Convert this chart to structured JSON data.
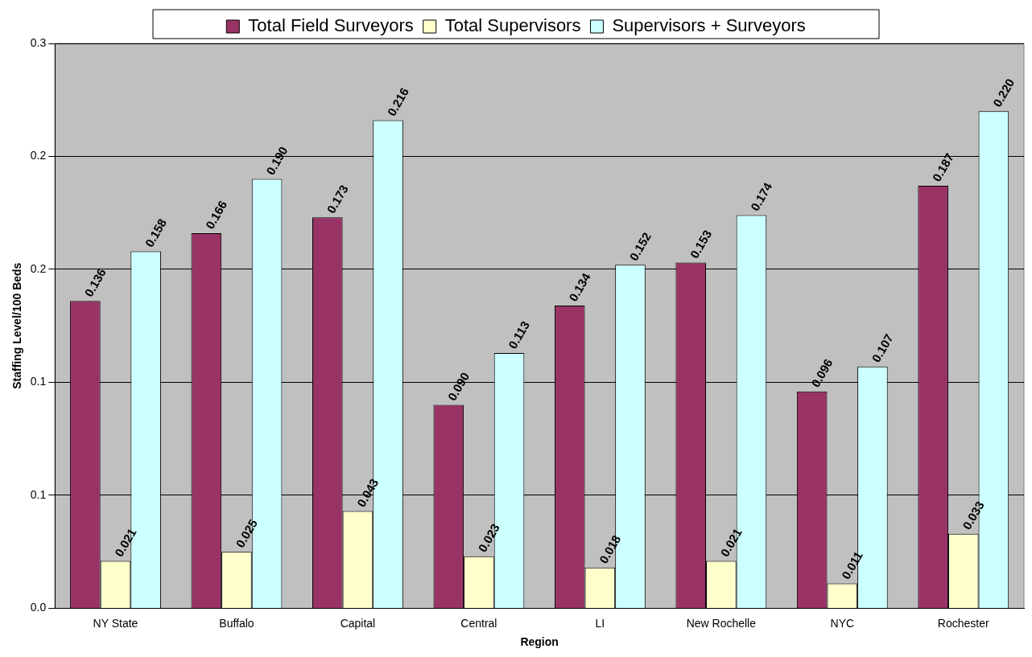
{
  "chart_data": {
    "type": "bar",
    "xlabel": "Region",
    "ylabel": "Staffing Level/100 Beds",
    "categories": [
      "NY State",
      "Buffalo",
      "Capital",
      "Central",
      "LI",
      "New Rochelle",
      "NYC",
      "Rochester"
    ],
    "series": [
      {
        "name": "Total Field Surveyors",
        "color": "#993366",
        "values": [
          0.136,
          0.166,
          0.173,
          0.09,
          0.134,
          0.153,
          0.096,
          0.187
        ],
        "value_labels": [
          "0.136",
          "0.166",
          "0.173",
          "0.090",
          "0.134",
          "0.153",
          "0.096",
          "0.187"
        ]
      },
      {
        "name": "Total Supervisors",
        "color": "#ffffcc",
        "values": [
          0.021,
          0.025,
          0.043,
          0.023,
          0.018,
          0.021,
          0.011,
          0.033
        ],
        "value_labels": [
          "0.021",
          "0.025",
          "0.043",
          "0.023",
          "0.018",
          "0.021",
          "0.011",
          "0.033"
        ]
      },
      {
        "name": "Supervisors + Surveyors",
        "color": "#ccffff",
        "values": [
          0.158,
          0.19,
          0.216,
          0.113,
          0.152,
          0.174,
          0.107,
          0.22
        ],
        "value_labels": [
          "0.158",
          "0.190",
          "0.216",
          "0.113",
          "0.152",
          "0.174",
          "0.107",
          "0.220"
        ]
      }
    ],
    "ylim": [
      0,
      0.25
    ],
    "yticks": [
      {
        "value": 0,
        "label": "0.0"
      },
      {
        "value": 0.05,
        "label": "0.1"
      },
      {
        "value": 0.1,
        "label": "0.1"
      },
      {
        "value": 0.15,
        "label": "0.2"
      },
      {
        "value": 0.2,
        "label": "0.2"
      },
      {
        "value": 0.25,
        "label": "0.3"
      }
    ],
    "grid": "y",
    "legend": "top"
  }
}
